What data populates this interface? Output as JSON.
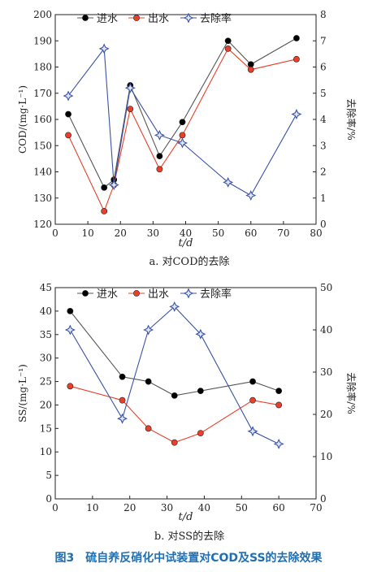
{
  "caption": "图3　硫自养反硝化中试装置对COD及SS的去除效果",
  "chart_data": [
    {
      "type": "line",
      "subtitle": "a. 对COD的去除",
      "xlabel": "t/d",
      "ylabel": "COD/(mg·L⁻¹)",
      "y2label": "去除率/%",
      "xlim": [
        0,
        80
      ],
      "ylim": [
        120,
        200
      ],
      "y2lim": [
        0,
        8
      ],
      "xticks": [
        0,
        10,
        20,
        30,
        40,
        50,
        60,
        70,
        80
      ],
      "yticks": [
        120,
        130,
        140,
        150,
        160,
        170,
        180,
        190,
        200
      ],
      "y2ticks": [
        0,
        1,
        2,
        3,
        4,
        5,
        6,
        7,
        8
      ],
      "legend_position": "top",
      "series": [
        {
          "name": "进水",
          "axis": "left",
          "marker": "black-dot",
          "x": [
            4,
            15,
            18,
            23,
            32,
            39,
            53,
            60,
            74
          ],
          "y": [
            162,
            134,
            137,
            173,
            146,
            159,
            190,
            181,
            191
          ]
        },
        {
          "name": "出水",
          "axis": "left",
          "marker": "red-dot",
          "x": [
            4,
            15,
            18,
            23,
            32,
            39,
            53,
            60,
            74
          ],
          "y": [
            154,
            125,
            135,
            164,
            141,
            154,
            187,
            179,
            183
          ]
        },
        {
          "name": "去除率",
          "axis": "right",
          "marker": "blue-star",
          "x": [
            4,
            15,
            18,
            23,
            32,
            39,
            53,
            60,
            74
          ],
          "y": [
            4.9,
            6.7,
            1.5,
            5.2,
            3.4,
            3.1,
            1.6,
            1.1,
            4.2
          ]
        }
      ]
    },
    {
      "type": "line",
      "subtitle": "b. 对SS的去除",
      "xlabel": "t/d",
      "ylabel": "SS/(mg·L⁻¹)",
      "y2label": "去除率/%",
      "xlim": [
        0,
        70
      ],
      "ylim": [
        0,
        45
      ],
      "y2lim": [
        0,
        50
      ],
      "xticks": [
        0,
        10,
        20,
        30,
        40,
        50,
        60,
        70
      ],
      "yticks": [
        0,
        5,
        10,
        15,
        20,
        25,
        30,
        35,
        40,
        45
      ],
      "y2ticks": [
        0,
        10,
        20,
        30,
        40,
        50
      ],
      "legend_position": "top",
      "series": [
        {
          "name": "进水",
          "axis": "left",
          "marker": "black-dot",
          "x": [
            4,
            18,
            25,
            32,
            39,
            53,
            60
          ],
          "y": [
            40,
            26,
            25,
            22,
            23,
            25,
            23
          ]
        },
        {
          "name": "出水",
          "axis": "left",
          "marker": "red-dot",
          "x": [
            4,
            18,
            25,
            32,
            39,
            53,
            60
          ],
          "y": [
            24,
            21,
            15,
            12,
            14,
            21,
            20
          ]
        },
        {
          "name": "去除率",
          "axis": "right",
          "marker": "blue-star",
          "x": [
            4,
            18,
            25,
            32,
            39,
            53,
            60
          ],
          "y": [
            40,
            19,
            40,
            45.5,
            39,
            16,
            13
          ]
        }
      ]
    }
  ],
  "colors": {
    "inflow": "#000000",
    "outflow": "#e8402a",
    "removal": "#3a52a8",
    "caption": "#1f6fb4"
  }
}
